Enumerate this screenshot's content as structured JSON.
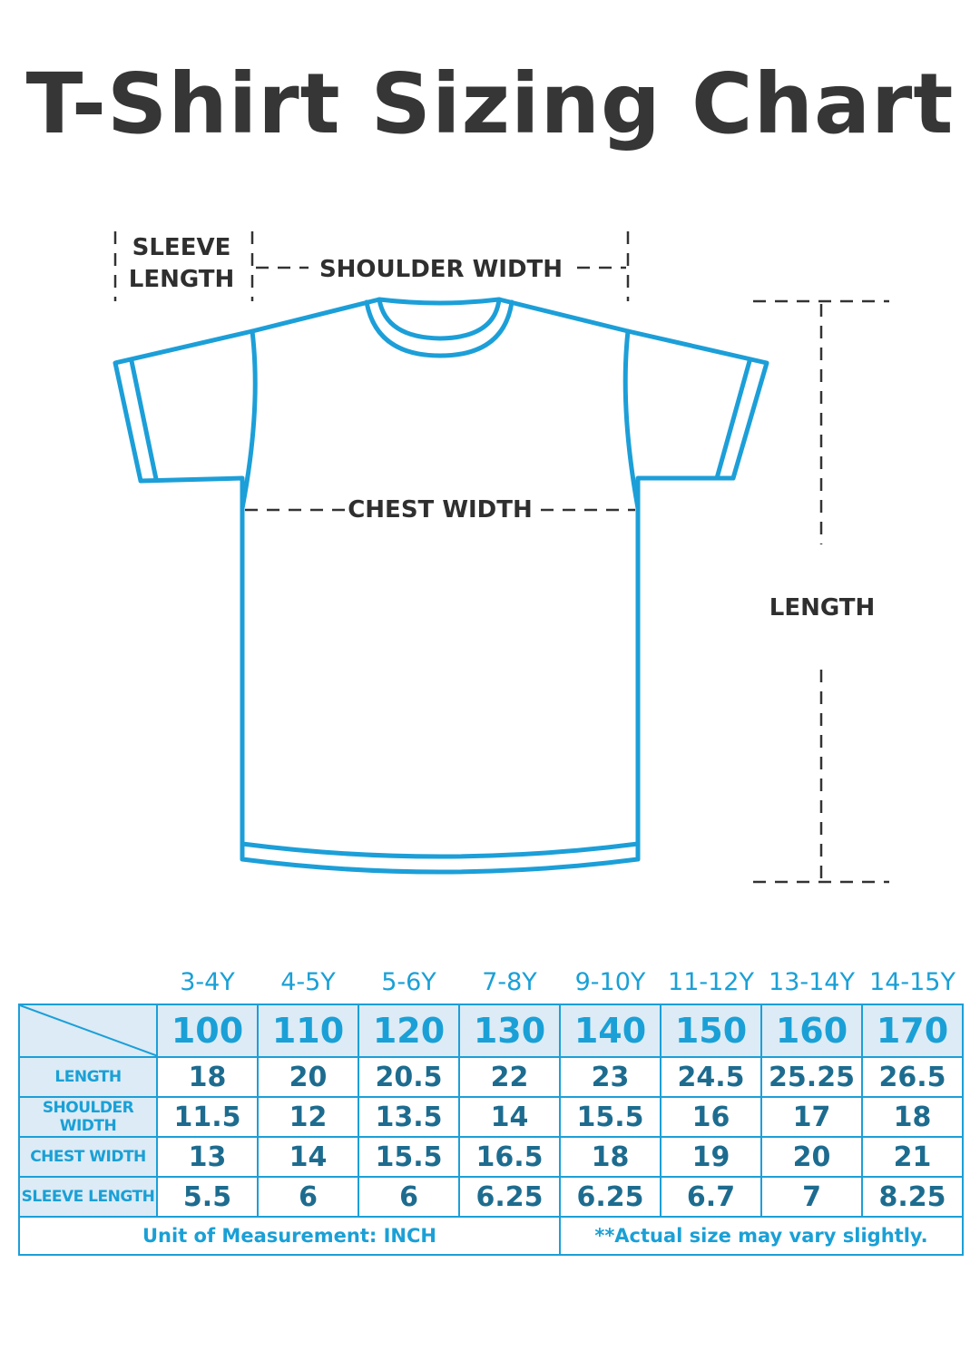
{
  "title": "T-Shirt Sizing Chart",
  "diagram": {
    "labels": {
      "sleeve_length_line1": "SLEEVE",
      "sleeve_length_line2": "LENGTH",
      "shoulder_width": "SHOULDER WIDTH",
      "chest_width": "CHEST WIDTH",
      "length": "LENGTH"
    },
    "colors": {
      "outline": "#1c9fd8",
      "label_text": "#2f2f2f",
      "dash": "#333333"
    }
  },
  "size_table": {
    "ages": [
      "3-4Y",
      "4-5Y",
      "5-6Y",
      "7-8Y",
      "9-10Y",
      "11-12Y",
      "13-14Y",
      "14-15Y"
    ],
    "heights": [
      "100",
      "110",
      "120",
      "130",
      "140",
      "150",
      "160",
      "170"
    ],
    "rows": [
      {
        "label": "LENGTH",
        "values": [
          "18",
          "20",
          "20.5",
          "22",
          "23",
          "24.5",
          "25.25",
          "26.5"
        ]
      },
      {
        "label": "SHOULDER WIDTH",
        "values": [
          "11.5",
          "12",
          "13.5",
          "14",
          "15.5",
          "16",
          "17",
          "18"
        ]
      },
      {
        "label": "CHEST WIDTH",
        "values": [
          "13",
          "14",
          "15.5",
          "16.5",
          "18",
          "19",
          "20",
          "21"
        ]
      },
      {
        "label": "SLEEVE LENGTH",
        "values": [
          "5.5",
          "6",
          "6",
          "6.25",
          "6.25",
          "6.7",
          "7",
          "8.25"
        ]
      }
    ],
    "footer_left": "Unit of Measurement: INCH",
    "footer_right": "**Actual size may vary slightly.",
    "colors": {
      "border": "#1c9fd8",
      "header_bg": "#dcebf5",
      "accent_text": "#1aa0d6",
      "value_text": "#1d6c8f"
    }
  }
}
